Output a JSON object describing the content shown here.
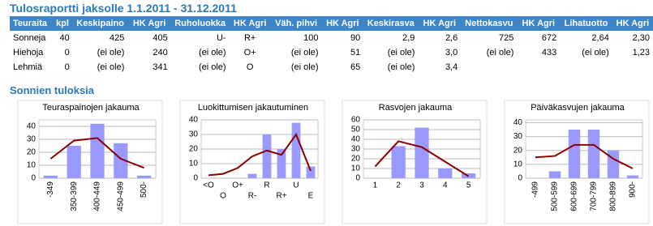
{
  "title": "Tulosraportti jaksolle 1.1.2011 - 31.12.2011",
  "table": {
    "header": [
      "Teuraita",
      "kpl",
      "Keskipaino",
      "HK Agri",
      "Ruholuokka",
      "HK Agri",
      "Väh. pihvi",
      "HK Agri",
      "Keskirasva",
      "HK Agri",
      "Nettokasvu",
      "HK Agri",
      "Lihatuotto",
      "HK Agri"
    ],
    "rows": [
      [
        "Sonneja",
        "40",
        "425",
        "405",
        "U-",
        "R+",
        "100",
        "90",
        "2,9",
        "2,6",
        "725",
        "672",
        "2,64",
        "2,30"
      ],
      [
        "Hiehoja",
        "0",
        "(ei ole)",
        "240",
        "(ei ole)",
        "O+",
        "(ei ole)",
        "51",
        "(ei ole)",
        "3,0",
        "(ei ole)",
        "433",
        "(ei ole)",
        "1,23"
      ],
      [
        "Lehmiä",
        "0",
        "(ei ole)",
        "341",
        "(ei ole)",
        "O",
        "(ei ole)",
        "65",
        "(ei ole)",
        "3,4"
      ]
    ]
  },
  "section_title": "Sonnien tuloksia",
  "chart_data": [
    {
      "type": "bar",
      "title": "Teuraspainojen jakauma",
      "categories": [
        "-349",
        "350-399",
        "400-449",
        "450-499",
        "500-"
      ],
      "series": [
        {
          "type": "bar",
          "color": "#9999ff",
          "values": [
            2,
            25,
            42,
            27,
            2
          ]
        },
        {
          "type": "line",
          "color": "#8b0000",
          "values": [
            15,
            29,
            31,
            15,
            8
          ]
        }
      ],
      "ylim": [
        0,
        45
      ],
      "yticks": [
        0,
        10,
        20,
        30,
        40
      ],
      "grid": true
    },
    {
      "type": "bar",
      "title": "Luokittumisen jakautuminen",
      "categories": [
        "<O",
        "O",
        "O+",
        "R-",
        "R",
        "R+",
        "U",
        "E"
      ],
      "series": [
        {
          "type": "bar",
          "color": "#9999ff",
          "values": [
            0,
            0,
            0,
            3,
            30,
            20,
            38,
            8
          ]
        },
        {
          "type": "line",
          "color": "#8b0000",
          "values": [
            2,
            3,
            7,
            15,
            19,
            16,
            30,
            5
          ]
        }
      ],
      "ylim": [
        0,
        40
      ],
      "yticks": [
        0,
        10,
        20,
        30,
        40
      ],
      "grid": true
    },
    {
      "type": "bar",
      "title": "Rasvojen jakauma",
      "categories": [
        "1",
        "2",
        "3",
        "4",
        "5"
      ],
      "series": [
        {
          "type": "bar",
          "color": "#9999ff",
          "values": [
            0,
            33,
            52,
            10,
            5
          ]
        },
        {
          "type": "line",
          "color": "#8b0000",
          "values": [
            12,
            38,
            32,
            17,
            2
          ]
        }
      ],
      "ylim": [
        0,
        60
      ],
      "yticks": [
        0,
        10,
        20,
        30,
        40,
        50,
        60
      ],
      "grid": true
    },
    {
      "type": "bar",
      "title": "Päiväkasvujen jakauma",
      "categories": [
        "-499",
        "500-599",
        "600-699",
        "700-799",
        "800-899",
        "900-"
      ],
      "series": [
        {
          "type": "bar",
          "color": "#9999ff",
          "values": [
            0,
            5,
            35,
            35,
            20,
            2
          ]
        },
        {
          "type": "line",
          "color": "#8b0000",
          "values": [
            15,
            16,
            24,
            24,
            14,
            7
          ]
        }
      ],
      "ylim": [
        0,
        42
      ],
      "yticks": [
        0,
        10,
        20,
        30,
        40
      ],
      "grid": true
    }
  ]
}
